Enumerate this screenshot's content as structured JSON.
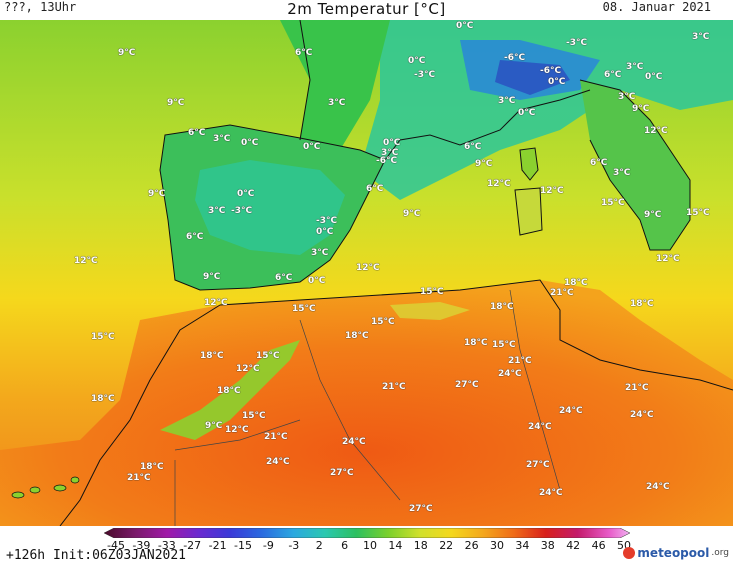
{
  "header": {
    "left": "???, 13Uhr",
    "title": "2m Temperatur [°C]",
    "date": "08. Januar 2021"
  },
  "footer": {
    "run_info": "+126h Init:06Z03JAN2021",
    "logo_text": "meteopool",
    "logo_suffix": ".org"
  },
  "colorbar": {
    "ticks": [
      "-45",
      "-39",
      "-33",
      "-27",
      "-21",
      "-15",
      "-9",
      "-3",
      "2",
      "6",
      "10",
      "14",
      "18",
      "22",
      "26",
      "30",
      "34",
      "38",
      "42",
      "46",
      "50"
    ]
  },
  "labels": [
    {
      "t": "0°C"
    },
    {
      "t": "6°C"
    },
    {
      "t": "9°C"
    },
    {
      "t": "0°C"
    },
    {
      "t": "-3°C"
    },
    {
      "t": "-6°C"
    },
    {
      "t": "-3°C"
    },
    {
      "t": "3°C"
    },
    {
      "t": "-6°C"
    },
    {
      "t": "0°C"
    },
    {
      "t": "6°C"
    },
    {
      "t": "3°C"
    },
    {
      "t": "0°C"
    },
    {
      "t": "9°C"
    },
    {
      "t": "3°C"
    },
    {
      "t": "3°C"
    },
    {
      "t": "3°C"
    },
    {
      "t": "0°C"
    },
    {
      "t": "12°C"
    },
    {
      "t": "9°C"
    },
    {
      "t": "6°C"
    },
    {
      "t": "3°C"
    },
    {
      "t": "0°C"
    },
    {
      "t": "0°C"
    },
    {
      "t": "0°C"
    },
    {
      "t": "3°C"
    },
    {
      "t": "-6°C"
    },
    {
      "t": "6°C"
    },
    {
      "t": "9°C"
    },
    {
      "t": "6°C"
    },
    {
      "t": "3°C"
    },
    {
      "t": "12°C"
    },
    {
      "t": "12°C"
    },
    {
      "t": "9°C"
    },
    {
      "t": "0°C"
    },
    {
      "t": "6°C"
    },
    {
      "t": "15°C"
    },
    {
      "t": "3°C"
    },
    {
      "t": "-3°C"
    },
    {
      "t": "-3°C"
    },
    {
      "t": "9°C"
    },
    {
      "t": "9°C"
    },
    {
      "t": "15°C"
    },
    {
      "t": "6°C"
    },
    {
      "t": "0°C"
    },
    {
      "t": "12°C"
    },
    {
      "t": "12°C"
    },
    {
      "t": "3°C"
    },
    {
      "t": "9°C"
    },
    {
      "t": "6°C"
    },
    {
      "t": "0°C"
    },
    {
      "t": "12°C"
    },
    {
      "t": "21°C"
    },
    {
      "t": "18°C"
    },
    {
      "t": "15°C"
    },
    {
      "t": "12°C"
    },
    {
      "t": "15°C"
    },
    {
      "t": "18°C"
    },
    {
      "t": "18°C"
    },
    {
      "t": "15°C"
    },
    {
      "t": "18°C"
    },
    {
      "t": "15°C"
    },
    {
      "t": "18°C"
    },
    {
      "t": "15°C"
    },
    {
      "t": "18°C"
    },
    {
      "t": "12°C"
    },
    {
      "t": "21°C"
    },
    {
      "t": "24°C"
    },
    {
      "t": "18°C"
    },
    {
      "t": "21°C"
    },
    {
      "t": "27°C"
    },
    {
      "t": "21°C"
    },
    {
      "t": "15°C"
    },
    {
      "t": "18°C"
    },
    {
      "t": "24°C"
    },
    {
      "t": "24°C"
    },
    {
      "t": "12°C"
    },
    {
      "t": "15°C"
    },
    {
      "t": "9°C"
    },
    {
      "t": "21°C"
    },
    {
      "t": "24°C"
    },
    {
      "t": "24°C"
    },
    {
      "t": "18°C"
    },
    {
      "t": "24°C"
    },
    {
      "t": "27°C"
    },
    {
      "t": "27°C"
    },
    {
      "t": "21°C"
    },
    {
      "t": "24°C"
    },
    {
      "t": "24°C"
    },
    {
      "t": "27°C"
    }
  ]
}
